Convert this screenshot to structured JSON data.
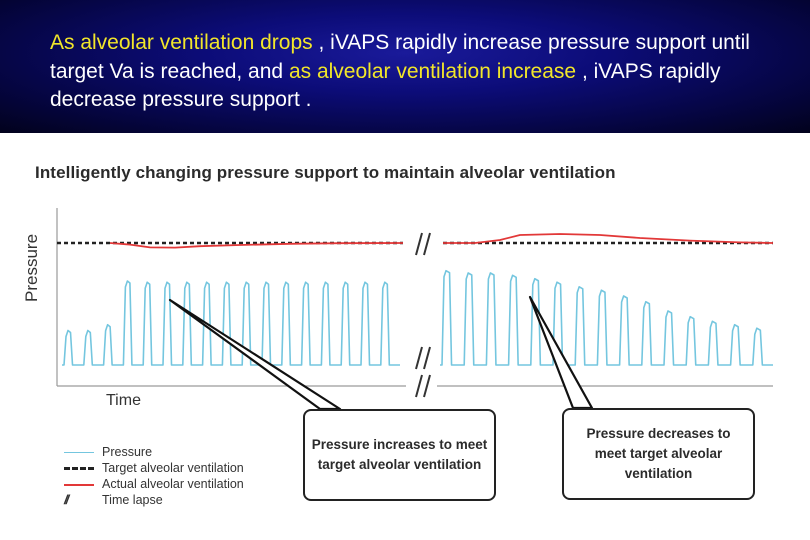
{
  "header": {
    "parts": [
      {
        "text": "As alveolar ventilation drops",
        "highlight": true
      },
      {
        "text": " , iVAPS rapidly increase pressure support until target Va is reached, and ",
        "highlight": false
      },
      {
        "text": "as alveolar ventilation increase",
        "highlight": true
      },
      {
        "text": " , iVAPS rapidly decrease pressure support .",
        "highlight": false
      }
    ]
  },
  "chart_data": {
    "type": "line",
    "title": "Intelligently changing pressure support to maintain alveolar ventilation",
    "xlabel": "Time",
    "ylabel": "Pressure",
    "grid": false,
    "legend": {
      "placement": "bottom-left",
      "entries": [
        {
          "label": "Pressure",
          "style": "thin-light-blue-line"
        },
        {
          "label": "Target alveolar ventilation",
          "style": "black-dashed-line"
        },
        {
          "label": "Actual alveolar ventilation",
          "style": "red-line"
        },
        {
          "label": "Time lapse",
          "style": "double-slash-symbol"
        }
      ]
    },
    "series": [
      {
        "name": "Target alveolar ventilation",
        "style": "dashed",
        "color": "#222222",
        "level": 1.0
      },
      {
        "name": "Actual alveolar ventilation",
        "style": "solid",
        "color": "#e23838",
        "segment_1_profile": "starts on target, dips below target, then recovers gradually",
        "segment_2_profile": "starts on target, rises above target, then returns gradually"
      },
      {
        "name": "Pressure",
        "style": "solid",
        "color": "#74c6df",
        "segment_1_peaks": [
          0.3,
          0.3,
          0.35,
          0.73,
          0.72,
          0.72,
          0.72,
          0.72,
          0.72,
          0.72,
          0.72,
          0.72,
          0.72,
          0.72,
          0.72,
          0.72,
          0.72
        ],
        "segment_2_peaks": [
          0.82,
          0.8,
          0.8,
          0.78,
          0.75,
          0.72,
          0.68,
          0.65,
          0.6,
          0.55,
          0.47,
          0.42,
          0.38,
          0.35,
          0.32
        ]
      }
    ],
    "time_lapse_symbol": "//",
    "annotations": [
      {
        "id": "increase",
        "text": "Pressure increases to meet target alveolar ventilation"
      },
      {
        "id": "decrease",
        "text": "Pressure decreases to meet target alveolar ventilation"
      }
    ]
  },
  "colors": {
    "header_bg": "#0c0c78",
    "header_text": "#ffffff",
    "highlight_text": "#f2e62a",
    "pressure": "#74c6df",
    "target": "#222222",
    "actual": "#e23838"
  }
}
